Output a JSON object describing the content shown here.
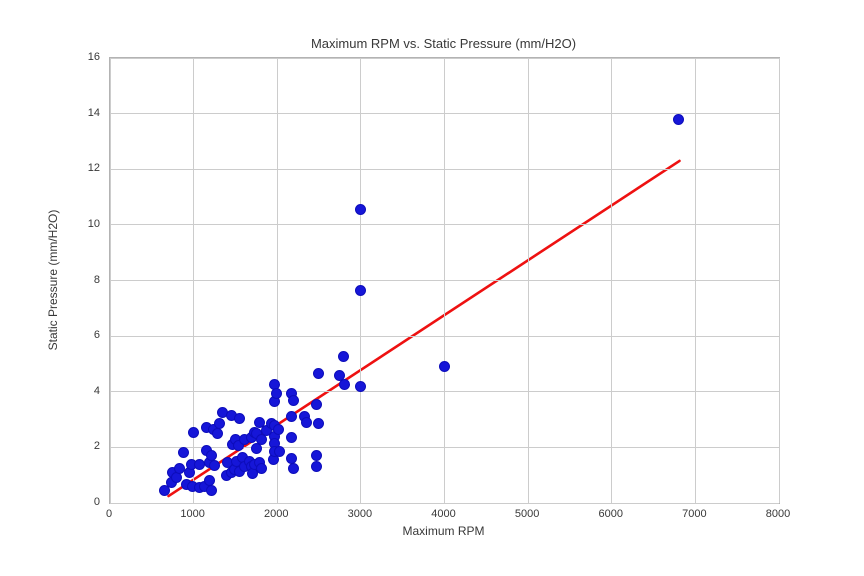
{
  "figure": {
    "background": "#ffffff",
    "text_color": "#383838",
    "grid_color": "#cccccc",
    "spine_color": "#b3b3b3"
  },
  "chart_data": {
    "type": "scatter",
    "title": "Maximum RPM vs. Static Pressure (mm/H2O)",
    "xlabel": "Maximum RPM",
    "ylabel": "Static Pressure (mm/H2O)",
    "xlim": [
      0,
      8000
    ],
    "ylim": [
      0,
      16
    ],
    "xticks": [
      0,
      1000,
      2000,
      3000,
      4000,
      5000,
      6000,
      7000,
      8000
    ],
    "yticks": [
      0,
      2,
      4,
      6,
      8,
      10,
      12,
      14,
      16
    ],
    "grid": true,
    "legend": "none",
    "point_color": "#1616d8",
    "point_edge_color": "#0d0dbb",
    "trendline": {
      "color": "#ee1111",
      "x_start": 700,
      "y_start": 0.25,
      "x_end": 6810,
      "y_end": 12.3
    },
    "points": [
      [
        650,
        0.45
      ],
      [
        730,
        0.75
      ],
      [
        750,
        1.1
      ],
      [
        790,
        0.9
      ],
      [
        830,
        1.25
      ],
      [
        880,
        1.8
      ],
      [
        920,
        0.65
      ],
      [
        950,
        1.1
      ],
      [
        970,
        1.4
      ],
      [
        990,
        0.6
      ],
      [
        1000,
        2.55
      ],
      [
        1070,
        0.55
      ],
      [
        1070,
        1.4
      ],
      [
        1130,
        0.6
      ],
      [
        1150,
        1.9
      ],
      [
        1150,
        2.7
      ],
      [
        1190,
        0.8
      ],
      [
        1190,
        1.45
      ],
      [
        1210,
        1.7
      ],
      [
        1210,
        0.45
      ],
      [
        1250,
        1.35
      ],
      [
        1240,
        2.65
      ],
      [
        1290,
        2.5
      ],
      [
        1310,
        2.85
      ],
      [
        1350,
        3.25
      ],
      [
        1390,
        1.0
      ],
      [
        1400,
        1.45
      ],
      [
        1450,
        3.15
      ],
      [
        1450,
        1.1
      ],
      [
        1470,
        2.1
      ],
      [
        1490,
        1.2
      ],
      [
        1500,
        2.3
      ],
      [
        1510,
        1.5
      ],
      [
        1540,
        2.05
      ],
      [
        1550,
        3.05
      ],
      [
        1550,
        1.15
      ],
      [
        1590,
        1.65
      ],
      [
        1610,
        2.3
      ],
      [
        1610,
        1.3
      ],
      [
        1670,
        1.5
      ],
      [
        1690,
        2.35
      ],
      [
        1690,
        1.3
      ],
      [
        1710,
        1.05
      ],
      [
        1730,
        2.55
      ],
      [
        1730,
        1.4
      ],
      [
        1750,
        1.95
      ],
      [
        1750,
        2.5
      ],
      [
        1790,
        2.9
      ],
      [
        1790,
        1.45
      ],
      [
        1810,
        2.3
      ],
      [
        1810,
        1.25
      ],
      [
        1870,
        2.6
      ],
      [
        1930,
        2.85
      ],
      [
        1950,
        1.55
      ],
      [
        1970,
        4.25
      ],
      [
        1970,
        3.65
      ],
      [
        1970,
        2.8
      ],
      [
        1970,
        2.4
      ],
      [
        1970,
        2.15
      ],
      [
        1970,
        1.85
      ],
      [
        1990,
        3.95
      ],
      [
        2010,
        2.65
      ],
      [
        2030,
        1.85
      ],
      [
        2170,
        3.95
      ],
      [
        2170,
        3.1
      ],
      [
        2170,
        2.35
      ],
      [
        2170,
        1.6
      ],
      [
        2190,
        3.7
      ],
      [
        2190,
        1.25
      ],
      [
        2330,
        3.1
      ],
      [
        2350,
        2.9
      ],
      [
        2470,
        3.55
      ],
      [
        2470,
        1.7
      ],
      [
        2470,
        1.3
      ],
      [
        2490,
        4.65
      ],
      [
        2490,
        2.85
      ],
      [
        2750,
        4.6
      ],
      [
        2790,
        5.25
      ],
      [
        2810,
        4.25
      ],
      [
        2990,
        4.2
      ],
      [
        2990,
        7.65
      ],
      [
        2990,
        10.55
      ],
      [
        4000,
        4.9
      ],
      [
        6800,
        13.8
      ]
    ]
  }
}
